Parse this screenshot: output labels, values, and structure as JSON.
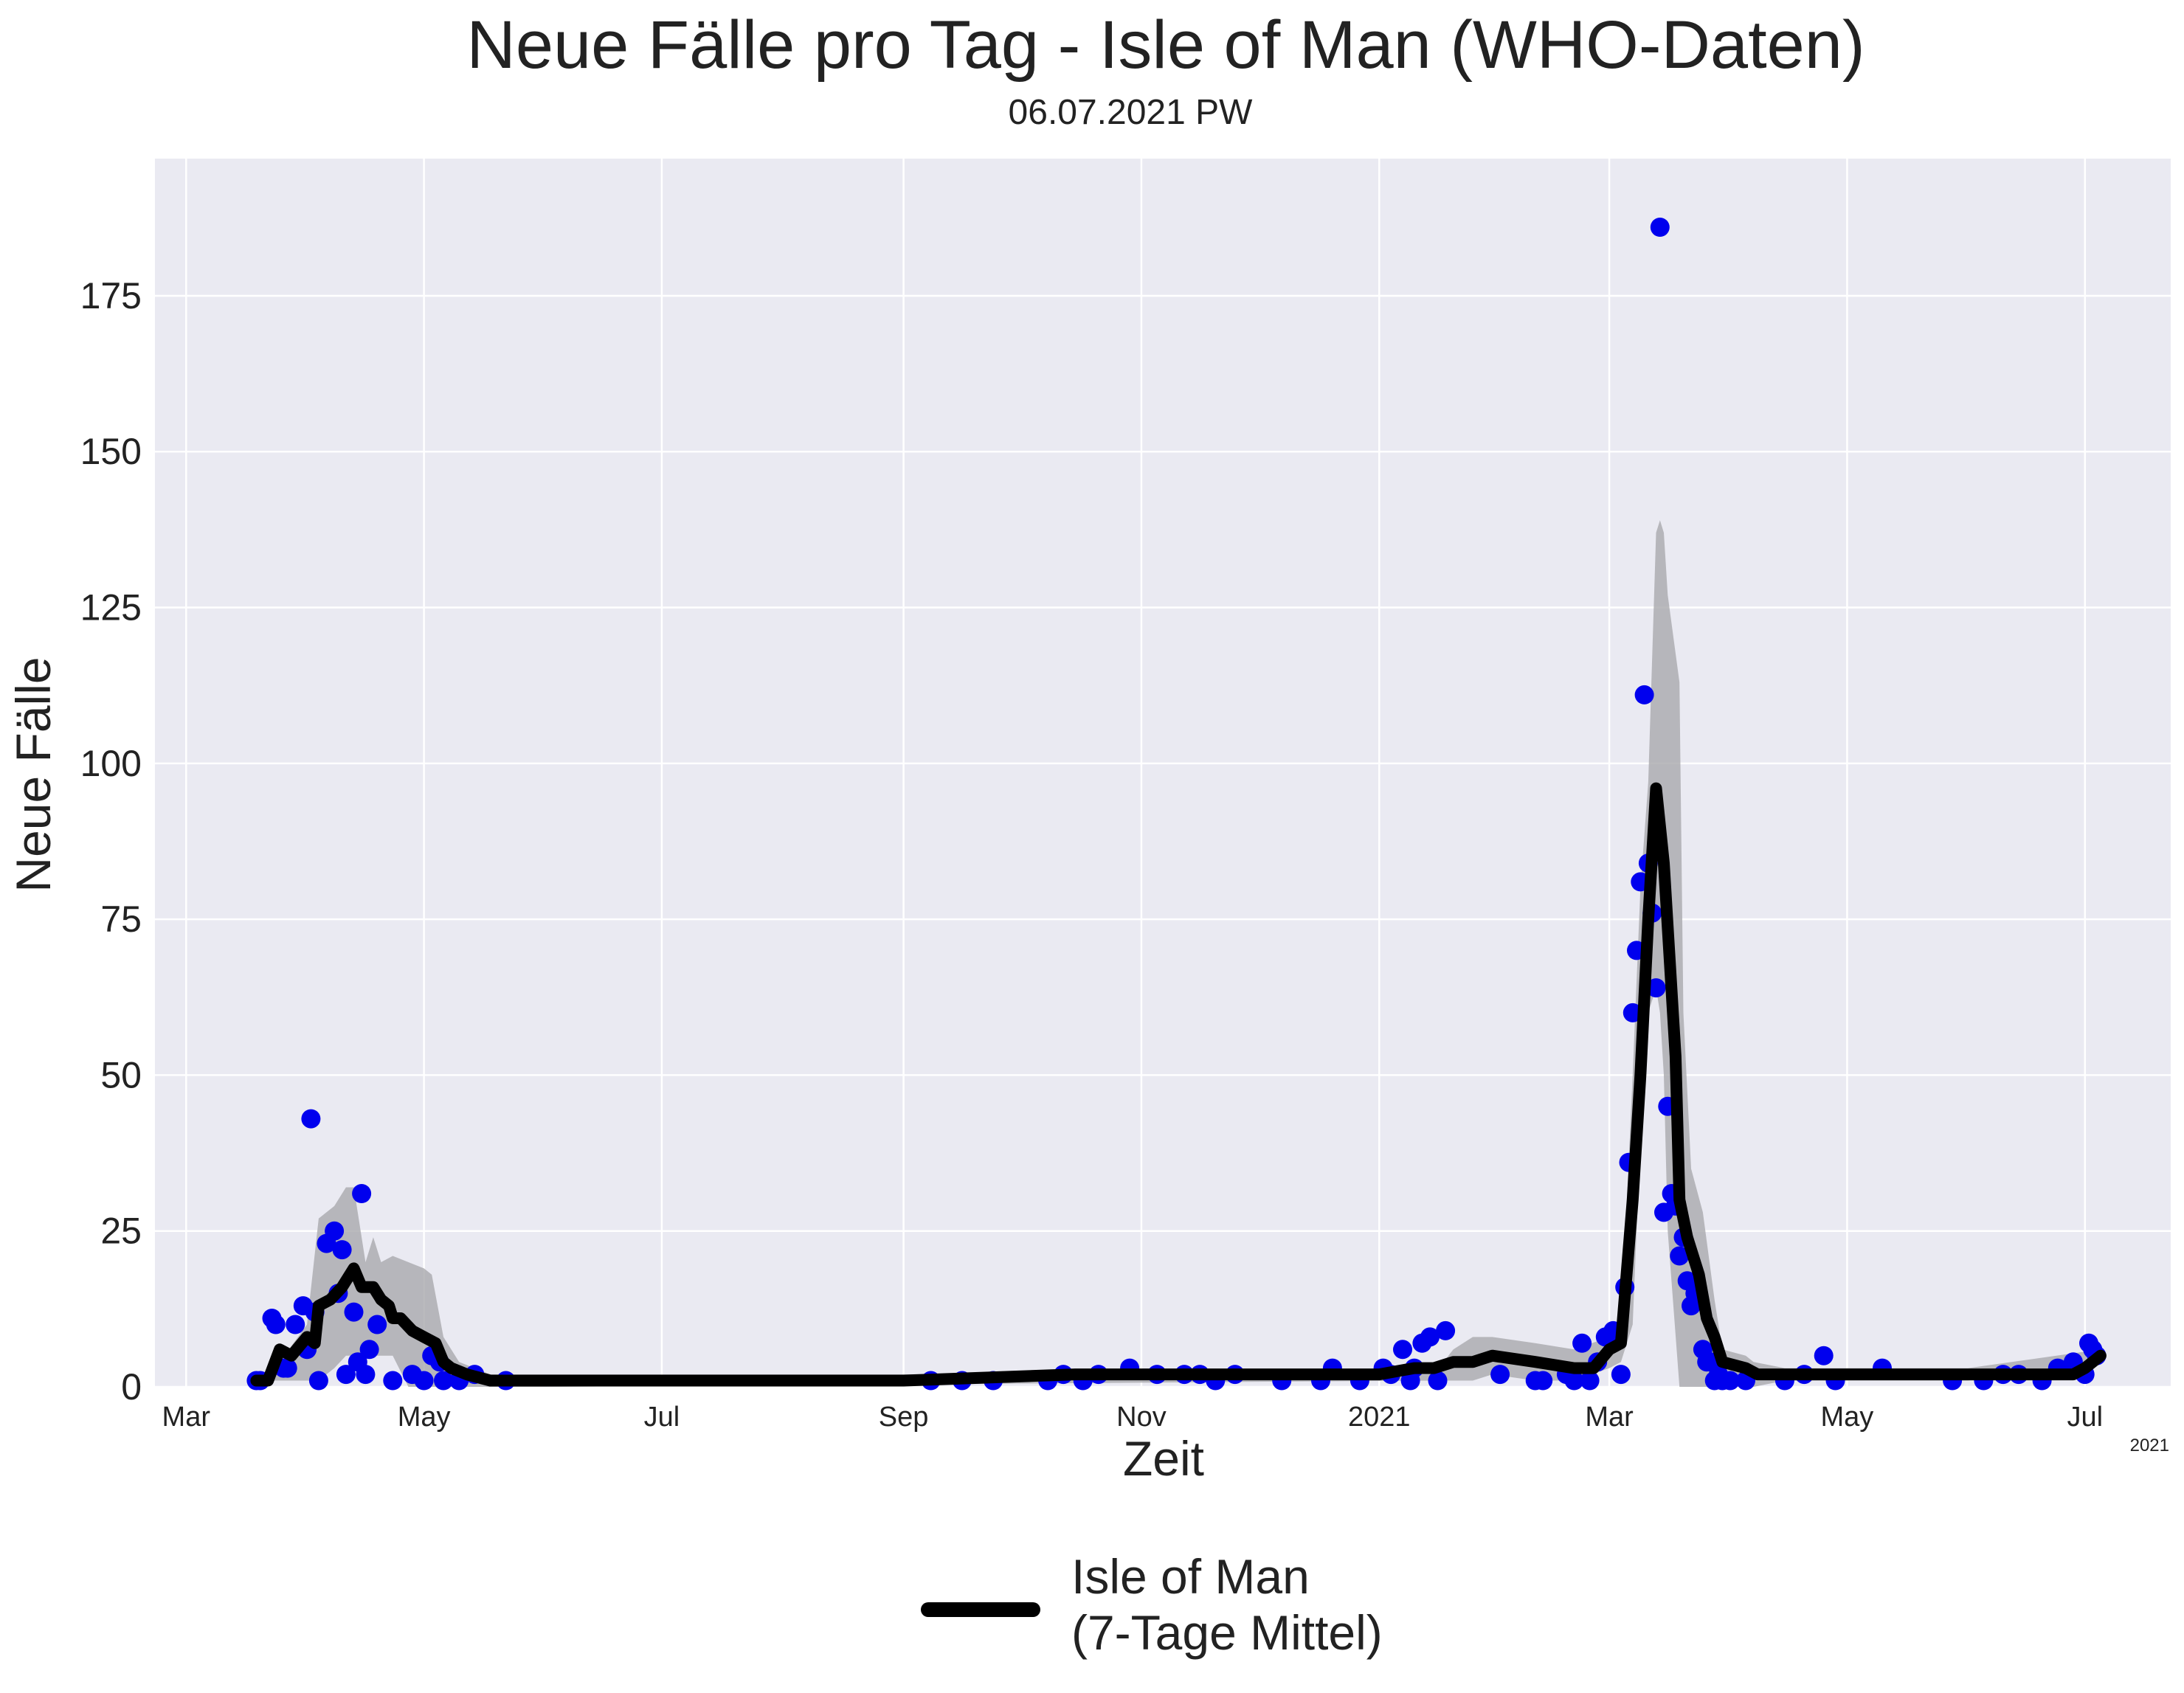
{
  "chart_data": {
    "type": "line",
    "title": "Neue Fälle pro Tag - Isle of Man (WHO-Daten)",
    "subtitle": "06.07.2021 PW",
    "xlabel": "Zeit",
    "ylabel": "Neue Fälle",
    "x_offset_label": "2021",
    "xlim": [
      "2020-02-22",
      "2021-07-23"
    ],
    "ylim": [
      0,
      197
    ],
    "grid": true,
    "legend_position": "bottom-center",
    "y_ticks": [
      0,
      25,
      50,
      75,
      100,
      125,
      150,
      175
    ],
    "x_ticks": [
      {
        "date": "2020-03-01",
        "label": "Mar"
      },
      {
        "date": "2020-05-01",
        "label": "May"
      },
      {
        "date": "2020-07-01",
        "label": "Jul"
      },
      {
        "date": "2020-09-01",
        "label": "Sep"
      },
      {
        "date": "2020-11-01",
        "label": "Nov"
      },
      {
        "date": "2021-01-01",
        "label": "2021"
      },
      {
        "date": "2021-03-01",
        "label": "Mar"
      },
      {
        "date": "2021-05-01",
        "label": "May"
      },
      {
        "date": "2021-07-01",
        "label": "Jul"
      }
    ],
    "colors": {
      "background": "#eaeaf2",
      "grid": "#ffffff",
      "points": "#0000ee",
      "line": "#000000",
      "band": "#a9a9ad"
    },
    "series": [
      {
        "name": "Isle of Man\n(7-Tage Mittel)",
        "kind": "line",
        "points": [
          [
            "2020-03-19",
            1
          ],
          [
            "2020-03-22",
            1
          ],
          [
            "2020-03-25",
            6
          ],
          [
            "2020-03-28",
            5
          ],
          [
            "2020-04-01",
            8
          ],
          [
            "2020-04-03",
            7
          ],
          [
            "2020-04-04",
            13
          ],
          [
            "2020-04-07",
            14
          ],
          [
            "2020-04-10",
            16
          ],
          [
            "2020-04-13",
            19
          ],
          [
            "2020-04-15",
            16
          ],
          [
            "2020-04-18",
            16
          ],
          [
            "2020-04-20",
            14
          ],
          [
            "2020-04-22",
            13
          ],
          [
            "2020-04-23",
            11
          ],
          [
            "2020-04-25",
            11
          ],
          [
            "2020-04-28",
            9
          ],
          [
            "2020-05-01",
            8
          ],
          [
            "2020-05-04",
            7
          ],
          [
            "2020-05-06",
            4
          ],
          [
            "2020-05-08",
            3
          ],
          [
            "2020-05-12",
            2
          ],
          [
            "2020-05-18",
            1
          ],
          [
            "2020-06-01",
            1
          ],
          [
            "2020-09-01",
            1
          ],
          [
            "2020-10-15",
            2
          ],
          [
            "2020-11-15",
            2
          ],
          [
            "2020-12-10",
            2
          ],
          [
            "2020-12-25",
            2
          ],
          [
            "2021-01-01",
            2
          ],
          [
            "2021-01-10",
            3
          ],
          [
            "2021-01-15",
            3
          ],
          [
            "2021-01-20",
            4
          ],
          [
            "2021-01-25",
            4
          ],
          [
            "2021-01-30",
            5
          ],
          [
            "2021-02-10",
            4
          ],
          [
            "2021-02-20",
            3
          ],
          [
            "2021-02-25",
            3
          ],
          [
            "2021-03-01",
            6
          ],
          [
            "2021-03-04",
            7
          ],
          [
            "2021-03-07",
            30
          ],
          [
            "2021-03-09",
            50
          ],
          [
            "2021-03-11",
            75
          ],
          [
            "2021-03-13",
            96
          ],
          [
            "2021-03-15",
            84
          ],
          [
            "2021-03-18",
            53
          ],
          [
            "2021-03-19",
            30
          ],
          [
            "2021-03-21",
            24
          ],
          [
            "2021-03-24",
            18
          ],
          [
            "2021-03-26",
            11
          ],
          [
            "2021-03-28",
            8
          ],
          [
            "2021-03-30",
            4
          ],
          [
            "2021-04-05",
            3
          ],
          [
            "2021-04-08",
            2
          ],
          [
            "2021-04-15",
            2
          ],
          [
            "2021-05-01",
            2
          ],
          [
            "2021-06-01",
            2
          ],
          [
            "2021-06-15",
            2
          ],
          [
            "2021-06-28",
            2
          ],
          [
            "2021-07-01",
            3
          ],
          [
            "2021-07-05",
            5
          ]
        ]
      },
      {
        "name": "",
        "kind": "band",
        "upper": [
          [
            "2020-03-19",
            1
          ],
          [
            "2020-03-25",
            4
          ],
          [
            "2020-04-01",
            10
          ],
          [
            "2020-04-04",
            27
          ],
          [
            "2020-04-08",
            29
          ],
          [
            "2020-04-11",
            32
          ],
          [
            "2020-04-13",
            32
          ],
          [
            "2020-04-16",
            20
          ],
          [
            "2020-04-18",
            24
          ],
          [
            "2020-04-20",
            20
          ],
          [
            "2020-04-23",
            21
          ],
          [
            "2020-04-27",
            20
          ],
          [
            "2020-05-01",
            19
          ],
          [
            "2020-05-03",
            18
          ],
          [
            "2020-05-06",
            8
          ],
          [
            "2020-05-10",
            4
          ],
          [
            "2020-05-18",
            2
          ],
          [
            "2020-06-01",
            2
          ],
          [
            "2021-01-15",
            2
          ],
          [
            "2021-01-20",
            6
          ],
          [
            "2021-01-25",
            8
          ],
          [
            "2021-01-30",
            8
          ],
          [
            "2021-02-10",
            7
          ],
          [
            "2021-02-20",
            6
          ],
          [
            "2021-03-01",
            8
          ],
          [
            "2021-03-04",
            10
          ],
          [
            "2021-03-07",
            50
          ],
          [
            "2021-03-09",
            80
          ],
          [
            "2021-03-11",
            97
          ],
          [
            "2021-03-13",
            137
          ],
          [
            "2021-03-14",
            139
          ],
          [
            "2021-03-15",
            137
          ],
          [
            "2021-03-16",
            127
          ],
          [
            "2021-03-19",
            113
          ],
          [
            "2021-03-20",
            60
          ],
          [
            "2021-03-22",
            35
          ],
          [
            "2021-03-25",
            28
          ],
          [
            "2021-03-28",
            14
          ],
          [
            "2021-03-30",
            6
          ],
          [
            "2021-04-05",
            5
          ],
          [
            "2021-04-07",
            4
          ],
          [
            "2021-04-15",
            3
          ],
          [
            "2021-05-01",
            3
          ],
          [
            "2021-06-01",
            3
          ],
          [
            "2021-07-05",
            6
          ]
        ],
        "lower": [
          [
            "2021-07-05",
            4
          ],
          [
            "2021-06-01",
            1
          ],
          [
            "2021-05-01",
            1
          ],
          [
            "2021-04-15",
            1
          ],
          [
            "2021-04-07",
            0
          ],
          [
            "2021-04-05",
            0
          ],
          [
            "2021-03-30",
            0
          ],
          [
            "2021-03-28",
            0
          ],
          [
            "2021-03-25",
            0
          ],
          [
            "2021-03-22",
            0
          ],
          [
            "2021-03-20",
            0
          ],
          [
            "2021-03-19",
            0
          ],
          [
            "2021-03-16",
            25
          ],
          [
            "2021-03-15",
            50
          ],
          [
            "2021-03-14",
            60
          ],
          [
            "2021-03-13",
            64
          ],
          [
            "2021-03-11",
            60
          ],
          [
            "2021-03-09",
            40
          ],
          [
            "2021-03-07",
            10
          ],
          [
            "2021-03-04",
            4
          ],
          [
            "2021-03-01",
            3
          ],
          [
            "2021-02-20",
            1
          ],
          [
            "2021-02-10",
            1
          ],
          [
            "2021-01-30",
            2
          ],
          [
            "2021-01-25",
            1
          ],
          [
            "2021-01-20",
            1
          ],
          [
            "2021-01-15",
            1
          ],
          [
            "2020-06-01",
            0
          ],
          [
            "2020-05-18",
            0
          ],
          [
            "2020-05-10",
            0
          ],
          [
            "2020-05-06",
            0
          ],
          [
            "2020-05-03",
            0
          ],
          [
            "2020-05-01",
            0
          ],
          [
            "2020-04-27",
            0
          ],
          [
            "2020-04-23",
            5
          ],
          [
            "2020-04-20",
            5
          ],
          [
            "2020-04-18",
            5
          ],
          [
            "2020-04-16",
            5
          ],
          [
            "2020-04-13",
            5
          ],
          [
            "2020-04-11",
            5
          ],
          [
            "2020-04-08",
            3
          ],
          [
            "2020-04-04",
            1
          ],
          [
            "2020-04-01",
            1
          ],
          [
            "2020-03-25",
            1
          ],
          [
            "2020-03-19",
            1
          ]
        ]
      },
      {
        "name": "",
        "kind": "scatter",
        "points": [
          [
            "2020-03-19",
            1
          ],
          [
            "2020-03-20",
            1
          ],
          [
            "2020-03-23",
            11
          ],
          [
            "2020-03-24",
            10
          ],
          [
            "2020-03-26",
            3
          ],
          [
            "2020-03-27",
            3
          ],
          [
            "2020-03-29",
            10
          ],
          [
            "2020-03-31",
            13
          ],
          [
            "2020-04-01",
            6
          ],
          [
            "2020-04-02",
            43
          ],
          [
            "2020-04-03",
            12
          ],
          [
            "2020-04-04",
            1
          ],
          [
            "2020-04-06",
            23
          ],
          [
            "2020-04-08",
            25
          ],
          [
            "2020-04-09",
            15
          ],
          [
            "2020-04-10",
            22
          ],
          [
            "2020-04-11",
            2
          ],
          [
            "2020-04-13",
            12
          ],
          [
            "2020-04-14",
            4
          ],
          [
            "2020-04-15",
            31
          ],
          [
            "2020-04-16",
            2
          ],
          [
            "2020-04-17",
            6
          ],
          [
            "2020-04-19",
            10
          ],
          [
            "2020-04-23",
            1
          ],
          [
            "2020-04-28",
            2
          ],
          [
            "2020-05-01",
            1
          ],
          [
            "2020-05-03",
            5
          ],
          [
            "2020-05-05",
            4
          ],
          [
            "2020-05-06",
            1
          ],
          [
            "2020-05-10",
            1
          ],
          [
            "2020-05-14",
            2
          ],
          [
            "2020-05-22",
            1
          ],
          [
            "2020-09-08",
            1
          ],
          [
            "2020-09-16",
            1
          ],
          [
            "2020-09-24",
            1
          ],
          [
            "2020-10-08",
            1
          ],
          [
            "2020-10-12",
            2
          ],
          [
            "2020-10-17",
            1
          ],
          [
            "2020-10-21",
            2
          ],
          [
            "2020-10-29",
            3
          ],
          [
            "2020-11-05",
            2
          ],
          [
            "2020-11-12",
            2
          ],
          [
            "2020-11-16",
            2
          ],
          [
            "2020-11-20",
            1
          ],
          [
            "2020-11-25",
            2
          ],
          [
            "2020-12-07",
            1
          ],
          [
            "2020-12-17",
            1
          ],
          [
            "2020-12-20",
            3
          ],
          [
            "2020-12-27",
            1
          ],
          [
            "2021-01-02",
            3
          ],
          [
            "2021-01-04",
            2
          ],
          [
            "2021-01-07",
            6
          ],
          [
            "2021-01-09",
            1
          ],
          [
            "2021-01-10",
            3
          ],
          [
            "2021-01-12",
            7
          ],
          [
            "2021-01-14",
            8
          ],
          [
            "2021-01-16",
            1
          ],
          [
            "2021-01-18",
            9
          ],
          [
            "2021-02-01",
            2
          ],
          [
            "2021-02-10",
            1
          ],
          [
            "2021-02-12",
            1
          ],
          [
            "2021-02-18",
            2
          ],
          [
            "2021-02-20",
            1
          ],
          [
            "2021-02-22",
            7
          ],
          [
            "2021-02-24",
            1
          ],
          [
            "2021-02-26",
            4
          ],
          [
            "2021-02-28",
            8
          ],
          [
            "2021-03-02",
            9
          ],
          [
            "2021-03-04",
            2
          ],
          [
            "2021-03-05",
            16
          ],
          [
            "2021-03-06",
            36
          ],
          [
            "2021-03-07",
            60
          ],
          [
            "2021-03-08",
            70
          ],
          [
            "2021-03-09",
            81
          ],
          [
            "2021-03-10",
            111
          ],
          [
            "2021-03-11",
            84
          ],
          [
            "2021-03-12",
            76
          ],
          [
            "2021-03-13",
            64
          ],
          [
            "2021-03-14",
            186
          ],
          [
            "2021-03-15",
            28
          ],
          [
            "2021-03-16",
            45
          ],
          [
            "2021-03-17",
            31
          ],
          [
            "2021-03-18",
            29
          ],
          [
            "2021-03-19",
            21
          ],
          [
            "2021-03-20",
            24
          ],
          [
            "2021-03-21",
            17
          ],
          [
            "2021-03-22",
            13
          ],
          [
            "2021-03-23",
            15
          ],
          [
            "2021-03-25",
            6
          ],
          [
            "2021-03-26",
            4
          ],
          [
            "2021-03-27",
            4
          ],
          [
            "2021-03-28",
            1
          ],
          [
            "2021-03-29",
            2
          ],
          [
            "2021-03-30",
            1
          ],
          [
            "2021-04-01",
            1
          ],
          [
            "2021-04-05",
            1
          ],
          [
            "2021-04-15",
            1
          ],
          [
            "2021-04-20",
            2
          ],
          [
            "2021-04-25",
            5
          ],
          [
            "2021-04-28",
            1
          ],
          [
            "2021-05-10",
            3
          ],
          [
            "2021-05-28",
            1
          ],
          [
            "2021-06-05",
            1
          ],
          [
            "2021-06-10",
            2
          ],
          [
            "2021-06-14",
            2
          ],
          [
            "2021-06-20",
            1
          ],
          [
            "2021-06-24",
            3
          ],
          [
            "2021-06-28",
            4
          ],
          [
            "2021-07-01",
            2
          ],
          [
            "2021-07-02",
            7
          ],
          [
            "2021-07-03",
            6
          ],
          [
            "2021-07-04",
            5
          ]
        ]
      }
    ]
  }
}
